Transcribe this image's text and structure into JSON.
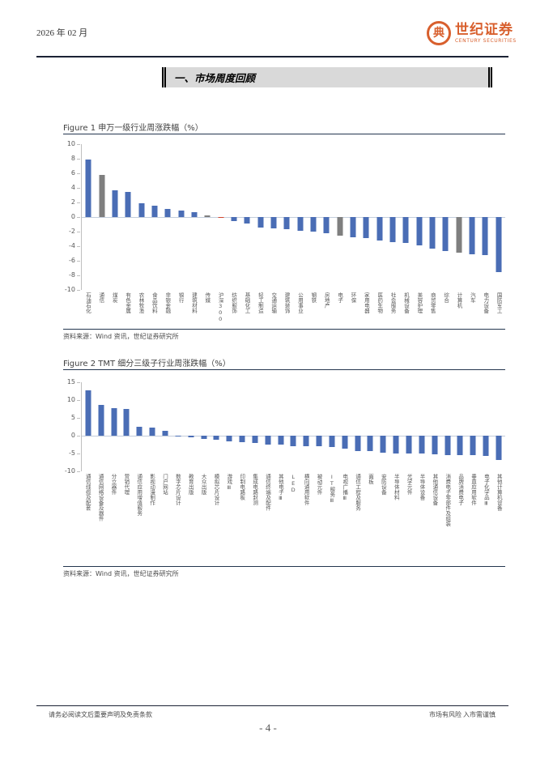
{
  "page": {
    "date": "2026 年 02 月",
    "logo": {
      "cn": "世纪证券",
      "en": "CENTURY SECURITIES",
      "accent": "#d85f2d"
    },
    "section_title": "一、市场周度回顾",
    "footer_left": "请务必阅读文后重要声明及免责条款",
    "footer_right": "市场有风险 入市需谨慎",
    "page_number": "- 4 -"
  },
  "figures": {
    "f1": {
      "title": "Figure 1 申万一级行业周涨跌幅（%）",
      "source": "资料来源：Wind 资讯，世纪证券研究所"
    },
    "f2": {
      "title": "Figure 2 TMT 细分三级子行业周涨跌幅（%）",
      "source": "资料来源：Wind 资讯，世纪证券研究所"
    }
  },
  "chart_data": [
    {
      "type": "bar",
      "title": "申万一级行业周涨跌幅（%）",
      "categories": [
        "石油石化",
        "通信",
        "煤炭",
        "有色金属",
        "农林牧渔",
        "食品饮料",
        "非银金融",
        "银行",
        "建筑材料",
        "传媒",
        "沪深300",
        "纺织服饰",
        "基础化工",
        "轻工制造",
        "交通运输",
        "建筑装饰",
        "公用事业",
        "钢铁",
        "房地产",
        "电子",
        "环保",
        "家用电器",
        "医药生物",
        "社会服务",
        "机械设备",
        "美容护理",
        "商贸零售",
        "综合",
        "计算机",
        "汽车",
        "电力设备",
        "国防军工"
      ],
      "values": [
        7.9,
        5.8,
        3.7,
        3.4,
        1.9,
        1.6,
        1.1,
        0.9,
        0.7,
        0.2,
        -0.1,
        -0.6,
        -0.9,
        -1.4,
        -1.6,
        -1.7,
        -1.9,
        -2.0,
        -2.2,
        -2.5,
        -2.8,
        -2.9,
        -3.2,
        -3.4,
        -3.5,
        -3.9,
        -4.3,
        -4.7,
        -4.9,
        -5.1,
        -5.2,
        -7.5
      ],
      "ylim": [
        -10,
        10
      ],
      "yticks": [
        10,
        8,
        6,
        4,
        2,
        0,
        -2,
        -4,
        -6,
        -8,
        -10
      ],
      "bar_color": "#4a6db5",
      "gray_color": "#7f7f7f",
      "red_color": "#d0442c",
      "highlight_gray": [
        1,
        9,
        19,
        28
      ],
      "highlight_red": [
        10
      ],
      "grid": false,
      "legend": "none"
    },
    {
      "type": "bar",
      "title": "TMT 细分三级子行业周涨跌幅（%）",
      "categories": [
        "通信线缆及配套",
        "通信网络设备及器件",
        "分立器件",
        "营销代理",
        "通信应用增值服务",
        "影视动漫制作",
        "门户网站",
        "数字芯片设计",
        "教育出版",
        "大众出版",
        "模拟芯片设计",
        "游戏Ⅲ",
        "印制电路板",
        "集成电路封测",
        "通信终端及配件",
        "其他电子Ⅲ",
        "LED",
        "横向通用软件",
        "被动元件",
        "IT服务Ⅲ",
        "电视广播Ⅲ",
        "通信工程及服务",
        "面板",
        "安防设备",
        "半导体材料",
        "光学元件",
        "半导体设备",
        "其他通信设备",
        "消费电子零部件及组装",
        "品牌消费电子",
        "垂直应用软件",
        "电子化学品Ⅲ",
        "其他计算机设备"
      ],
      "values": [
        12.8,
        8.6,
        7.8,
        7.5,
        2.6,
        2.2,
        1.4,
        -0.1,
        -0.4,
        -0.9,
        -1.1,
        -1.7,
        -1.9,
        -2.1,
        -2.4,
        -2.6,
        -2.9,
        -3.0,
        -3.0,
        -3.1,
        -3.6,
        -4.3,
        -4.4,
        -4.8,
        -4.9,
        -4.9,
        -5.1,
        -5.3,
        -5.4,
        -5.5,
        -5.5,
        -5.7,
        -6.9
      ],
      "ylim": [
        -10,
        15
      ],
      "yticks": [
        15,
        10,
        5,
        0,
        -5,
        -10
      ],
      "bar_color": "#4a6db5",
      "grid": false,
      "legend": "none"
    }
  ]
}
